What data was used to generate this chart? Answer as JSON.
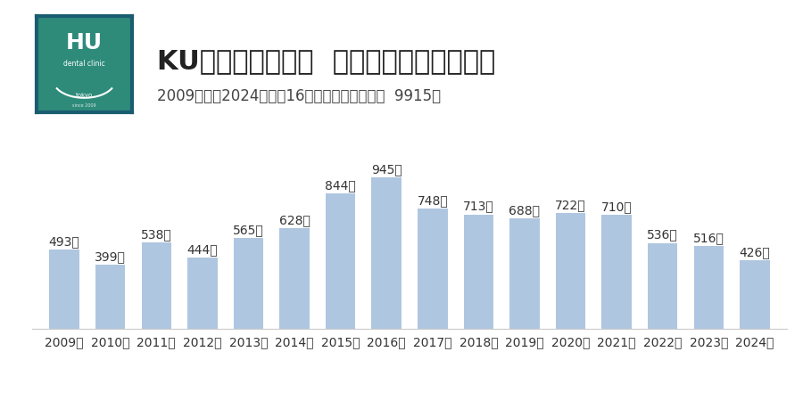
{
  "years": [
    "2009年",
    "2010年",
    "2011年",
    "2012年",
    "2013年",
    "2014年",
    "2015年",
    "2016年",
    "2017年",
    "2018年",
    "2019年",
    "2020年",
    "2021年",
    "2022年",
    "2023年",
    "2024年"
  ],
  "values": [
    493,
    399,
    538,
    444,
    565,
    628,
    844,
    945,
    748,
    713,
    688,
    722,
    710,
    536,
    516,
    426
  ],
  "bar_color": "#afc6e0",
  "title": "KU歯科クリニック  インプラント埋入本数",
  "subtitle": "2009年から2024年まで16年間の合計埋入本数  9915本",
  "title_fontsize": 22,
  "subtitle_fontsize": 12,
  "bar_label_fontsize": 10,
  "xtick_fontsize": 10,
  "background_color": "#ffffff",
  "logo_bg_color": "#2e8b7a",
  "logo_border_color": "#1a5c70",
  "ylim": [
    0,
    1100
  ]
}
